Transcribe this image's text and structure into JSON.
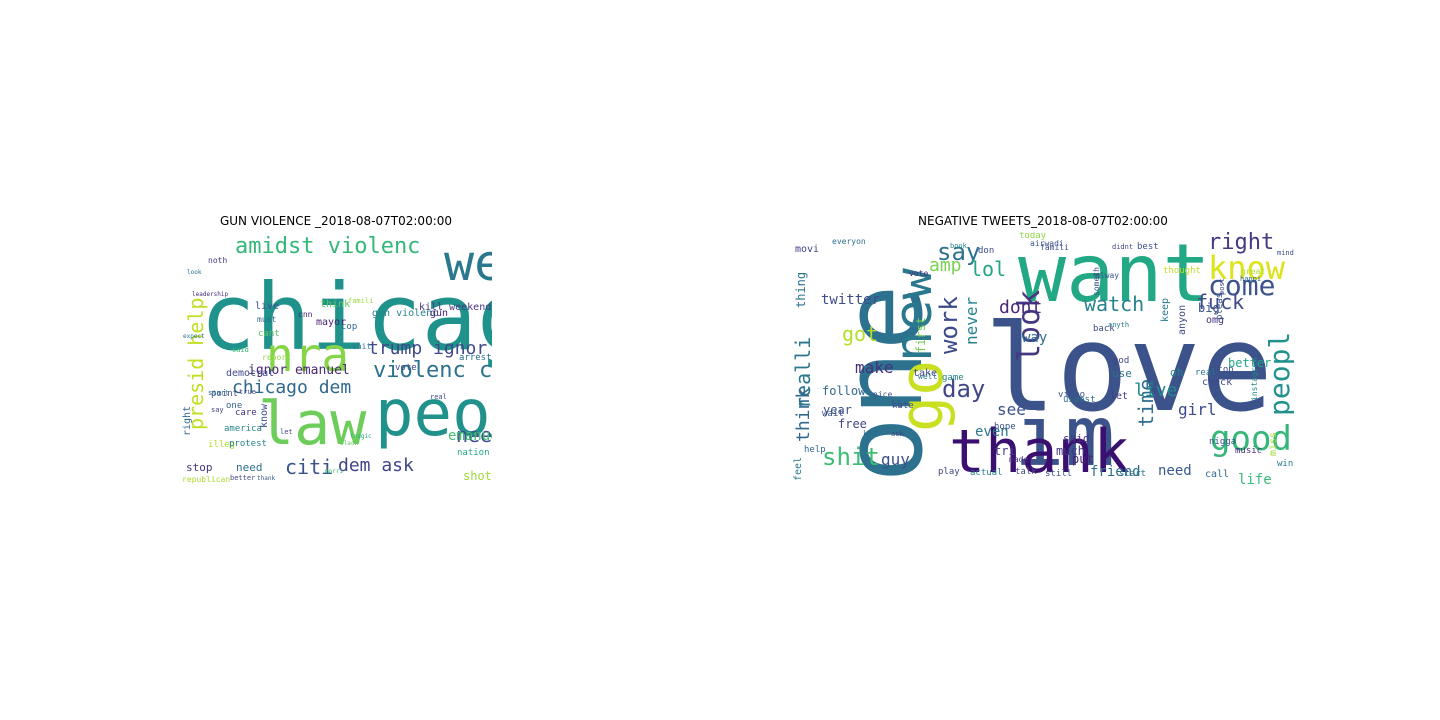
{
  "figure": {
    "left_title": "GUN VIOLENCE _2018-08-07T02:00:00",
    "right_title": "NEGATIVE TWEETS_2018-08-07T02:00:00"
  },
  "clouds": {
    "left": [
      {
        "text": "chicago",
        "color": "#1f928c"
      },
      {
        "text": "peopl",
        "color": "#21918c"
      },
      {
        "text": "weekend",
        "color": "#2a788e"
      },
      {
        "text": "nra",
        "color": "#86d549"
      },
      {
        "text": "law",
        "color": "#6ccd5a"
      },
      {
        "text": "amidst violenc",
        "color": "#35b779"
      },
      {
        "text": "presid help",
        "color": "#c2df23"
      },
      {
        "text": "violenc chicago",
        "color": "#2c728e"
      },
      {
        "text": "need presid",
        "color": "#3b528b"
      },
      {
        "text": "chicago dem",
        "color": "#31688e"
      },
      {
        "text": "help amidst",
        "color": "#31688e"
      },
      {
        "text": "ask trump",
        "color": "#2c728e"
      },
      {
        "text": "citi",
        "color": "#3b528b"
      },
      {
        "text": "dem ask",
        "color": "#414487"
      },
      {
        "text": "trump ignor",
        "color": "#3e4989"
      },
      {
        "text": "emanuel ban",
        "color": "#3fbc73"
      },
      {
        "text": "ignor emanuel",
        "color": "#482878"
      },
      {
        "text": "gun violenc",
        "color": "#26828e"
      },
      {
        "text": "kill weekend",
        "color": "#443983"
      },
      {
        "text": "mayor",
        "color": "#481f70"
      },
      {
        "text": "think",
        "color": "#5ec962"
      },
      {
        "text": "democrat",
        "color": "#3e4989"
      },
      {
        "text": "shot kill",
        "color": "#a0da39"
      },
      {
        "text": "realdonaldtrump",
        "color": "#2a788e"
      },
      {
        "text": "stop",
        "color": "#46337e"
      },
      {
        "text": "need",
        "color": "#2d708e"
      },
      {
        "text": "right",
        "color": "#31688e"
      },
      {
        "text": "live",
        "color": "#3b528b"
      },
      {
        "text": "gun",
        "color": "#482475"
      },
      {
        "text": "fuck",
        "color": "#481a6c"
      },
      {
        "text": "murder",
        "color": "#453882"
      },
      {
        "text": "children",
        "color": "#472c7a"
      },
      {
        "text": "obama",
        "color": "#38588c"
      },
      {
        "text": "shoot",
        "color": "#3e4a89"
      },
      {
        "text": "control",
        "color": "#2f6c8e"
      },
      {
        "text": "america",
        "color": "#25848e"
      },
      {
        "text": "vote",
        "color": "#404688"
      },
      {
        "text": "care",
        "color": "#46327e"
      },
      {
        "text": "know",
        "color": "#3e4c8a"
      },
      {
        "text": "point",
        "color": "#3b528b"
      },
      {
        "text": "cop",
        "color": "#31678e"
      },
      {
        "text": "cant",
        "color": "#5cc863"
      },
      {
        "text": "arrest",
        "color": "#2c718e"
      },
      {
        "text": "rahm",
        "color": "#3a548c"
      },
      {
        "text": "polic",
        "color": "#433e85"
      },
      {
        "text": "amp",
        "color": "#6ece58"
      },
      {
        "text": "see",
        "color": "#3d4e8a"
      },
      {
        "text": "one",
        "color": "#35608d"
      },
      {
        "text": "dont",
        "color": "#481b6d"
      },
      {
        "text": "illeg",
        "color": "#b0dd2f"
      },
      {
        "text": "protest",
        "color": "#27808e"
      },
      {
        "text": "republican",
        "color": "#addc30"
      },
      {
        "text": "countri",
        "color": "#2e6f8e"
      },
      {
        "text": "nation",
        "color": "#22a884"
      },
      {
        "text": "american",
        "color": "#c8e020"
      },
      {
        "text": "sad",
        "color": "#27ad81"
      },
      {
        "text": "state",
        "color": "#7ad151"
      },
      {
        "text": "call",
        "color": "#46307e"
      },
      {
        "text": "end",
        "color": "#424086"
      },
      {
        "text": "don",
        "color": "#3b528b"
      },
      {
        "text": "shit",
        "color": "#2a788e"
      },
      {
        "text": "report",
        "color": "#8fd744"
      },
      {
        "text": "cnn",
        "color": "#482878"
      },
      {
        "text": "must",
        "color": "#31688e"
      },
      {
        "text": "work",
        "color": "#d5e21a"
      },
      {
        "text": "noth",
        "color": "#443a83"
      },
      {
        "text": "said",
        "color": "#3aba76"
      },
      {
        "text": "true",
        "color": "#404588"
      },
      {
        "text": "start",
        "color": "#2e6e8e"
      },
      {
        "text": "say",
        "color": "#424186"
      },
      {
        "text": "better",
        "color": "#3f4889"
      },
      {
        "text": "go",
        "color": "#2d708e"
      },
      {
        "text": "let",
        "color": "#3e4989"
      },
      {
        "text": "famili",
        "color": "#9bd93c"
      },
      {
        "text": "real",
        "color": "#3d4d8a"
      },
      {
        "text": "black",
        "color": "#63cb5f"
      },
      {
        "text": "tragic",
        "color": "#25ac82"
      },
      {
        "text": "morri",
        "color": "#37b878"
      },
      {
        "text": "thank",
        "color": "#38598c"
      },
      {
        "text": "look",
        "color": "#2b748e"
      },
      {
        "text": "great",
        "color": "#365c8d"
      },
      {
        "text": "leadership",
        "color": "#472d7b"
      },
      {
        "text": "expect",
        "color": "#2c738e"
      }
    ],
    "right": [
      {
        "text": "love",
        "color": "#3b528b"
      },
      {
        "text": "one",
        "color": "#2c718e"
      },
      {
        "text": "want",
        "color": "#22a884"
      },
      {
        "text": "im",
        "color": "#3b528b"
      },
      {
        "text": "go",
        "color": "#c8e020"
      },
      {
        "text": "thank",
        "color": "#3b0f70"
      },
      {
        "text": "new",
        "color": "#2a788e"
      },
      {
        "text": "know",
        "color": "#dde318"
      },
      {
        "text": "good",
        "color": "#35b779"
      },
      {
        "text": "peopl",
        "color": "#21918c"
      },
      {
        "text": "look",
        "color": "#453781"
      },
      {
        "text": "come",
        "color": "#3b528b"
      },
      {
        "text": "right",
        "color": "#443983"
      },
      {
        "text": "work",
        "color": "#3e4989"
      },
      {
        "text": "say",
        "color": "#2c728e"
      },
      {
        "text": "day",
        "color": "#3f4788"
      },
      {
        "text": "shit",
        "color": "#3fbc73"
      },
      {
        "text": "fuck",
        "color": "#3e4a89"
      },
      {
        "text": "watch",
        "color": "#26828e"
      },
      {
        "text": "dont",
        "color": "#472a7a"
      },
      {
        "text": "lol",
        "color": "#21a685"
      },
      {
        "text": "amp",
        "color": "#7ad151"
      },
      {
        "text": "realli",
        "color": "#2a768e"
      },
      {
        "text": "think",
        "color": "#31688e"
      },
      {
        "text": "make",
        "color": "#46307e"
      },
      {
        "text": "got",
        "color": "#b5de2b"
      },
      {
        "text": "twitter",
        "color": "#3e4c8a"
      },
      {
        "text": "guy",
        "color": "#3d4e8a"
      },
      {
        "text": "time",
        "color": "#2e6e8e"
      },
      {
        "text": "live",
        "color": "#23898e"
      },
      {
        "text": "girl",
        "color": "#3e4a89"
      },
      {
        "text": "life",
        "color": "#3aba76"
      },
      {
        "text": "friend",
        "color": "#2d708e"
      },
      {
        "text": "need",
        "color": "#38588c"
      },
      {
        "text": "see",
        "color": "#3b528b"
      },
      {
        "text": "even",
        "color": "#2a788e"
      },
      {
        "text": "year",
        "color": "#3b528b"
      },
      {
        "text": "free",
        "color": "#414487"
      },
      {
        "text": "never",
        "color": "#25848e"
      },
      {
        "text": "way",
        "color": "#2f6c8e"
      },
      {
        "text": "tri",
        "color": "#433d84"
      },
      {
        "text": "said",
        "color": "#46327e"
      },
      {
        "text": "much",
        "color": "#453882"
      },
      {
        "text": "put",
        "color": "#482475"
      },
      {
        "text": "first",
        "color": "#75d054"
      },
      {
        "text": "thing",
        "color": "#2c718e"
      },
      {
        "text": "big",
        "color": "#3b528b"
      },
      {
        "text": "omg",
        "color": "#46337e"
      },
      {
        "text": "better",
        "color": "#22a785"
      },
      {
        "text": "miss",
        "color": "#a2da37"
      },
      {
        "text": "follow",
        "color": "#31688e"
      },
      {
        "text": "take",
        "color": "#404688"
      },
      {
        "text": "keep",
        "color": "#2a788e"
      },
      {
        "text": "anyon",
        "color": "#3e4c8a"
      },
      {
        "text": "check",
        "color": "#3f4788"
      },
      {
        "text": "oh",
        "color": "#25848e"
      },
      {
        "text": "use",
        "color": "#2e6f8e"
      },
      {
        "text": "let",
        "color": "#443a83"
      },
      {
        "text": "call",
        "color": "#31688e"
      },
      {
        "text": "still",
        "color": "#3b528b"
      },
      {
        "text": "play",
        "color": "#414487"
      },
      {
        "text": "talk",
        "color": "#3e4989"
      },
      {
        "text": "start",
        "color": "#2c728e"
      },
      {
        "text": "actual",
        "color": "#27808e"
      },
      {
        "text": "made",
        "color": "#46317e"
      },
      {
        "text": "hope",
        "color": "#3b528b"
      },
      {
        "text": "music",
        "color": "#472f7d"
      },
      {
        "text": "win",
        "color": "#2a788e"
      },
      {
        "text": "stop",
        "color": "#3d4d8a"
      },
      {
        "text": "game",
        "color": "#26828e"
      },
      {
        "text": "hate",
        "color": "#3f4889"
      },
      {
        "text": "help",
        "color": "#31688e"
      },
      {
        "text": "wait",
        "color": "#3b528b"
      },
      {
        "text": "movi",
        "color": "#414487"
      },
      {
        "text": "feel",
        "color": "#2a788e"
      },
      {
        "text": "today",
        "color": "#8fd744"
      },
      {
        "text": "famili",
        "color": "#3e4c8a"
      },
      {
        "text": "best",
        "color": "#3b528b"
      },
      {
        "text": "thought",
        "color": "#c2df23"
      },
      {
        "text": "great",
        "color": "#b0dd2f"
      },
      {
        "text": "pleas",
        "color": "#3b528b"
      },
      {
        "text": "instagram",
        "color": "#25848e"
      },
      {
        "text": "uspost",
        "color": "#2e6e8e"
      },
      {
        "text": "video",
        "color": "#3b528b"
      },
      {
        "text": "ll",
        "color": "#3b528b"
      },
      {
        "text": "don",
        "color": "#3e4989"
      },
      {
        "text": "god",
        "color": "#404688"
      },
      {
        "text": "real",
        "color": "#2c728e"
      },
      {
        "text": "nigga",
        "color": "#3b528b"
      },
      {
        "text": "kid",
        "color": "#31688e"
      },
      {
        "text": "back",
        "color": "#3e4a89"
      },
      {
        "text": "well",
        "color": "#2a788e"
      },
      {
        "text": "nice",
        "color": "#3b528b"
      },
      {
        "text": "ask",
        "color": "#414487"
      },
      {
        "text": "book",
        "color": "#26828e"
      },
      {
        "text": "mind",
        "color": "#3b528b"
      },
      {
        "text": "vote",
        "color": "#482878"
      },
      {
        "text": "someth",
        "color": "#3e4c8a"
      },
      {
        "text": "alway",
        "color": "#3b528b"
      },
      {
        "text": "everyon",
        "color": "#2c718e"
      },
      {
        "text": "airwadi",
        "color": "#3b528b"
      },
      {
        "text": "didnt",
        "color": "#3f4788"
      },
      {
        "text": "post",
        "color": "#3e4989"
      },
      {
        "text": "happi",
        "color": "#31688e"
      },
      {
        "text": "anyth",
        "color": "#2a788e"
      },
      {
        "text": "head",
        "color": "#414487"
      }
    ]
  }
}
